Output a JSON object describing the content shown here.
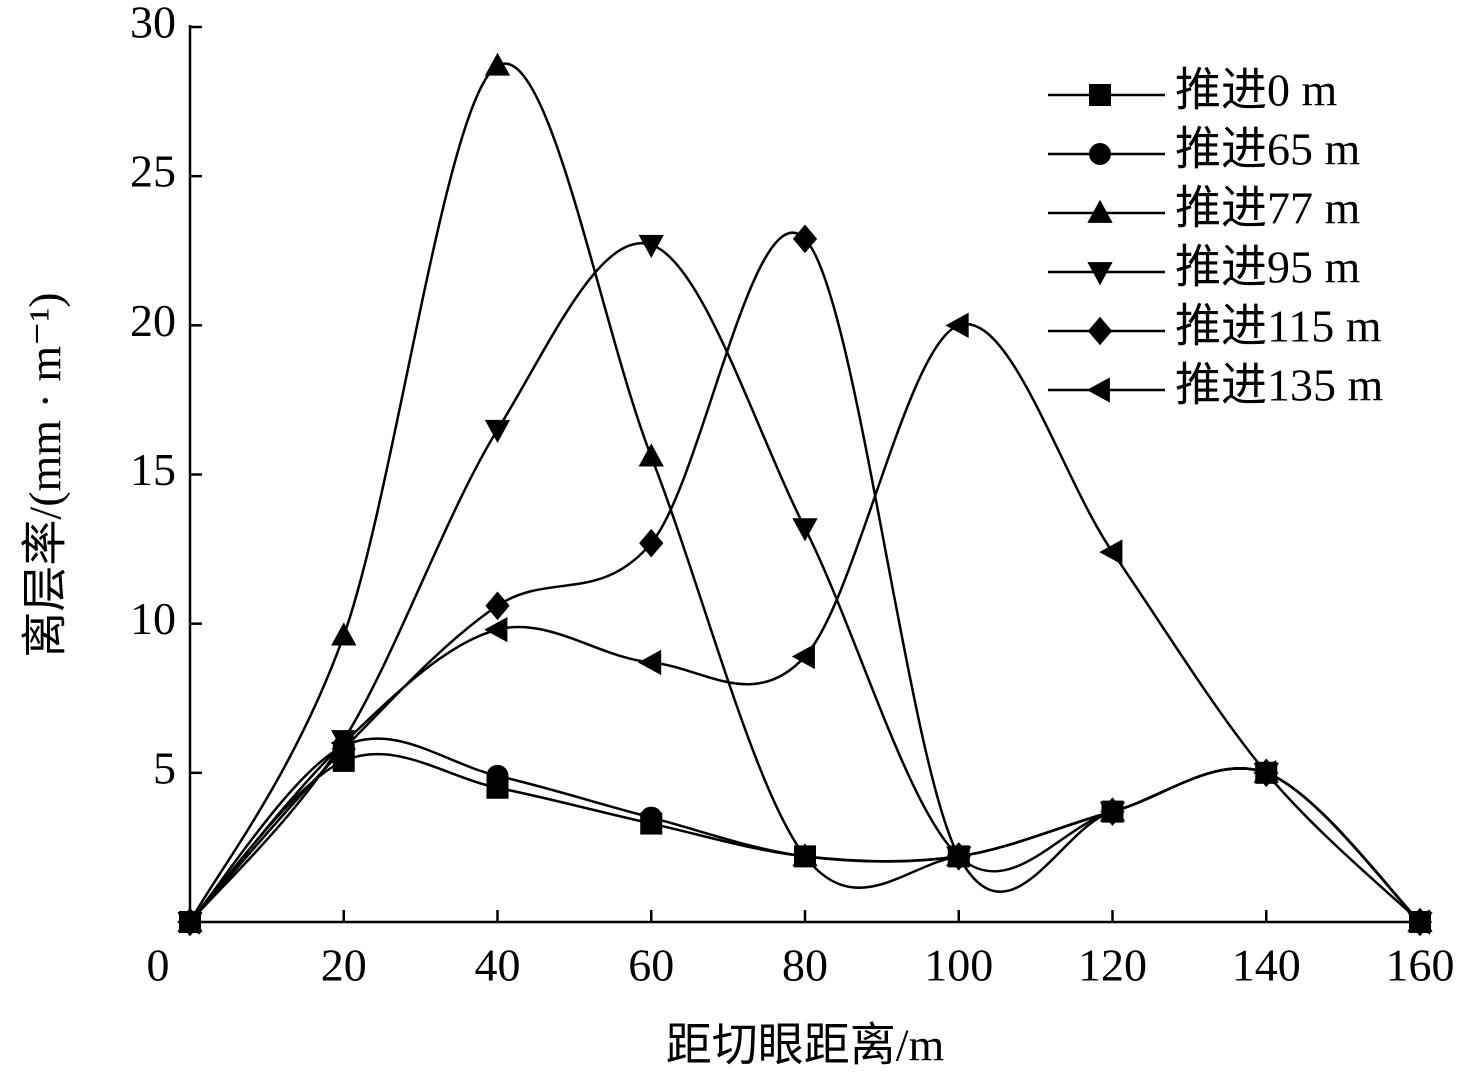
{
  "chart_data": {
    "type": "line",
    "xlabel": "距切眼距离/m",
    "ylabel": "离层率/(mm · m⁻¹)",
    "x": [
      0,
      20,
      40,
      60,
      80,
      100,
      120,
      140,
      160
    ],
    "xlim": [
      0,
      160
    ],
    "xticks": [
      0,
      20,
      40,
      60,
      80,
      100,
      120,
      140,
      160
    ],
    "ylim": [
      0,
      30
    ],
    "yticks": [
      5,
      10,
      15,
      20,
      25,
      30
    ],
    "legend": "upper right",
    "series": [
      {
        "name": "推进0 m",
        "color": "#000000",
        "marker": "square",
        "values": [
          0,
          5.4,
          4.5,
          3.3,
          2.2,
          2.2,
          3.7,
          5.0,
          0
        ]
      },
      {
        "name": "推进65 m",
        "color": "#000000",
        "marker": "circle",
        "values": [
          0,
          5.9,
          4.9,
          3.5,
          2.2,
          2.2,
          3.7,
          5.0,
          0
        ]
      },
      {
        "name": "推进77 m",
        "color": "#000000",
        "marker": "triangle-up",
        "values": [
          0,
          9.6,
          28.7,
          15.6,
          2.2,
          2.2,
          3.7,
          5.0,
          0
        ]
      },
      {
        "name": "推进95 m",
        "color": "#000000",
        "marker": "triangle-down",
        "values": [
          0,
          6.1,
          16.5,
          22.7,
          13.2,
          2.2,
          3.7,
          5.0,
          0
        ]
      },
      {
        "name": "推进115 m",
        "color": "#000000",
        "marker": "diamond",
        "values": [
          0,
          5.8,
          10.6,
          12.7,
          22.9,
          2.2,
          3.7,
          5.0,
          0
        ]
      },
      {
        "name": "推进135 m",
        "color": "#000000",
        "marker": "triangle-left",
        "values": [
          0,
          6.0,
          9.8,
          8.7,
          8.9,
          20.0,
          12.4,
          5.0,
          0
        ]
      }
    ]
  }
}
